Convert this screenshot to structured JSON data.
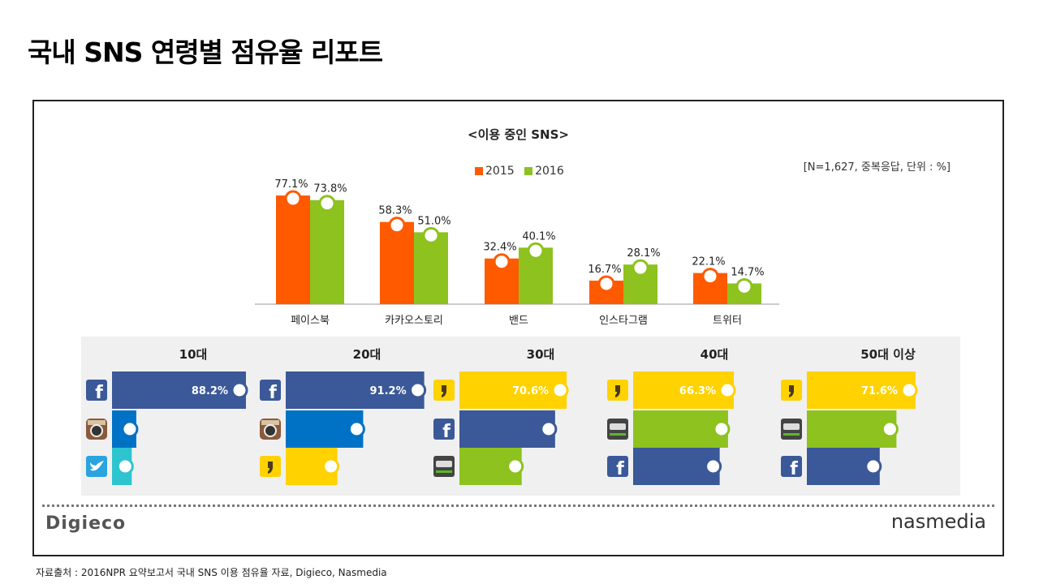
{
  "title": "국내 SNS 연령별 점유율 리포트",
  "chart_data": [
    {
      "type": "bar",
      "title": "<이용 중인 SNS>",
      "note": "[N=1,627, 중복응답, 단위 : %]",
      "categories": [
        "페이스북",
        "카카오스토리",
        "밴드",
        "인스타그램",
        "트위터"
      ],
      "series": [
        {
          "name": "2015",
          "color": "#ff5a00",
          "values": [
            77.1,
            58.3,
            32.4,
            16.7,
            22.1
          ],
          "labels": [
            "77.1%",
            "58.3%",
            "32.4%",
            "16.7%",
            "22.1%"
          ]
        },
        {
          "name": "2016",
          "color": "#8dc21f",
          "values": [
            73.8,
            51.0,
            40.1,
            28.1,
            14.7
          ],
          "labels": [
            "73.8%",
            "51.0%",
            "40.1%",
            "28.1%",
            "14.7%"
          ]
        }
      ],
      "ylim": [
        0,
        80
      ]
    },
    {
      "type": "bar",
      "orientation": "horizontal",
      "groups": [
        {
          "label": "10대",
          "bars": [
            {
              "icon": "facebook-icon",
              "value": 88.2,
              "label": "88.2%",
              "color": "#3b5998"
            },
            {
              "icon": "instagram-icon",
              "value": 16,
              "color": "#0072c6"
            },
            {
              "icon": "twitter-icon",
              "value": 13,
              "color": "#2ec4cf"
            }
          ]
        },
        {
          "label": "20대",
          "bars": [
            {
              "icon": "facebook-icon",
              "value": 91.2,
              "label": "91.2%",
              "color": "#3b5998"
            },
            {
              "icon": "instagram-icon",
              "value": 51,
              "color": "#0072c6"
            },
            {
              "icon": "kakaostory-icon",
              "value": 34,
              "color": "#ffd200"
            }
          ]
        },
        {
          "label": "30대",
          "bars": [
            {
              "icon": "kakaostory-icon",
              "value": 70.6,
              "label": "70.6%",
              "color": "#ffd200"
            },
            {
              "icon": "facebook-icon",
              "value": 63,
              "color": "#3b5998"
            },
            {
              "icon": "band-icon",
              "value": 41,
              "color": "#8dc21f"
            }
          ]
        },
        {
          "label": "40대",
          "bars": [
            {
              "icon": "kakaostory-icon",
              "value": 66.3,
              "label": "66.3%",
              "color": "#ffd200"
            },
            {
              "icon": "band-icon",
              "value": 62.5,
              "color": "#8dc21f"
            },
            {
              "icon": "facebook-icon",
              "value": 57,
              "color": "#3b5998"
            }
          ]
        },
        {
          "label": "50대 이상",
          "bars": [
            {
              "icon": "kakaostory-icon",
              "value": 71.6,
              "label": "71.6%",
              "color": "#ffd200"
            },
            {
              "icon": "band-icon",
              "value": 59,
              "color": "#8dc21f"
            },
            {
              "icon": "facebook-icon",
              "value": 48,
              "color": "#3b5998"
            }
          ]
        }
      ]
    }
  ],
  "brand_left": "Digieco",
  "brand_right": "nasmedia",
  "source": "자료출처 : 2016NPR 요약보고서 국내 SNS 이용 점유율 자료, Digieco, Nasmedia"
}
